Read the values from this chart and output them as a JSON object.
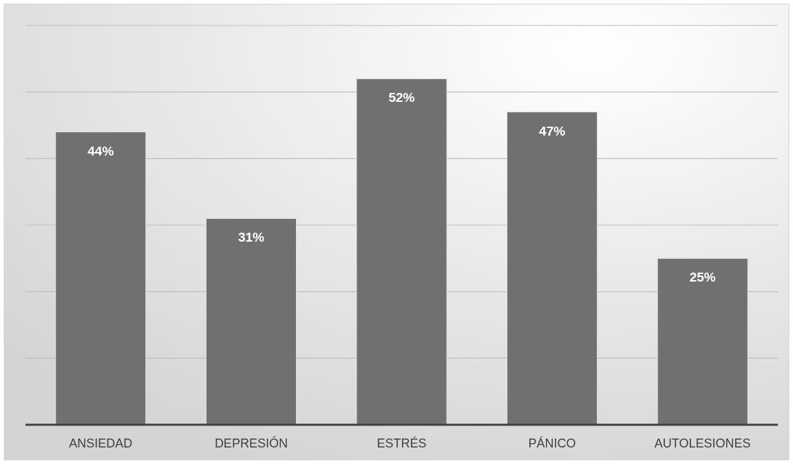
{
  "chart_data": {
    "type": "bar",
    "categories": [
      "ANSIEDAD",
      "DEPRESIÓN",
      "ESTRÉS",
      "PÁNICO",
      "AUTOLESIONES"
    ],
    "values": [
      44,
      31,
      52,
      47,
      25
    ],
    "value_labels": [
      "44%",
      "31%",
      "52%",
      "47%",
      "25%"
    ],
    "color": "#707070",
    "ylim": [
      0,
      60
    ],
    "yticks": [
      0,
      10,
      20,
      30,
      40,
      50,
      60
    ],
    "grid": "y",
    "tick_labels": "x"
  }
}
